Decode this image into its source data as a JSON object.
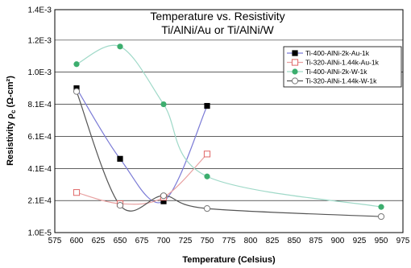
{
  "chart_data": {
    "type": "line",
    "title": "Temperature vs. Resistivity",
    "subtitle": "Ti/AlNi/Au or Ti/AlNi/W",
    "xlabel": "Temperature (Celsius)",
    "ylabel_main": "Resistivity ",
    "ylabel_symbol": "ρ",
    "ylabel_sub": "c",
    "ylabel_unit": " (Ω-cm²)",
    "xlim": [
      575,
      975
    ],
    "ylim": [
      1e-05,
      0.0014
    ],
    "x_ticks": [
      "575",
      "600",
      "625",
      "650",
      "675",
      "700",
      "725",
      "750",
      "775",
      "800",
      "825",
      "850",
      "875",
      "900",
      "925",
      "950",
      "975"
    ],
    "y_ticks": [
      {
        "value": 1e-05,
        "label": "1.0E-5"
      },
      {
        "value": 0.00021,
        "label": "2.1E-4"
      },
      {
        "value": 0.00041,
        "label": "4.1E-4"
      },
      {
        "value": 0.00061,
        "label": "6.1E-4"
      },
      {
        "value": 0.00081,
        "label": "8.1E-4"
      },
      {
        "value": 0.00101,
        "label": "1.0E-3"
      },
      {
        "value": 0.00121,
        "label": "1.2E-3"
      },
      {
        "value": 0.0014,
        "label": "1.4E-3"
      }
    ],
    "grid": "horizontal",
    "legend_position": "top-right",
    "series": [
      {
        "name": "Ti-400-AlNi-2k-Au-1k",
        "marker": "square-filled",
        "color": "#000000",
        "line_color": "#7b7bd6",
        "points": [
          [
            600,
            0.00091
          ],
          [
            650,
            0.00047
          ],
          [
            700,
            0.000205
          ],
          [
            750,
            0.0008
          ]
        ]
      },
      {
        "name": "Ti-320-AlNi-1.44k-Au-1k",
        "marker": "square-open",
        "color": "#e06666",
        "line_color": "#e8a0a0",
        "points": [
          [
            600,
            0.00026
          ],
          [
            650,
            0.00019
          ],
          [
            700,
            0.00023
          ],
          [
            750,
            0.0005
          ]
        ]
      },
      {
        "name": "Ti-400-AlNi-2k-W-1k",
        "marker": "circle-filled",
        "color": "#3cae6e",
        "line_color": "#9fd9c8",
        "points": [
          [
            600,
            0.00106
          ],
          [
            650,
            0.00117
          ],
          [
            700,
            0.00081
          ],
          [
            750,
            0.00036
          ],
          [
            950,
            0.00017
          ]
        ]
      },
      {
        "name": "Ti-320-AlNi-1.44k-W-1k",
        "marker": "circle-open",
        "color": "#777777",
        "line_color": "#555555",
        "points": [
          [
            600,
            0.00089
          ],
          [
            650,
            0.00018
          ],
          [
            700,
            0.00024
          ],
          [
            750,
            0.00016
          ],
          [
            950,
            0.00011
          ]
        ]
      }
    ]
  }
}
